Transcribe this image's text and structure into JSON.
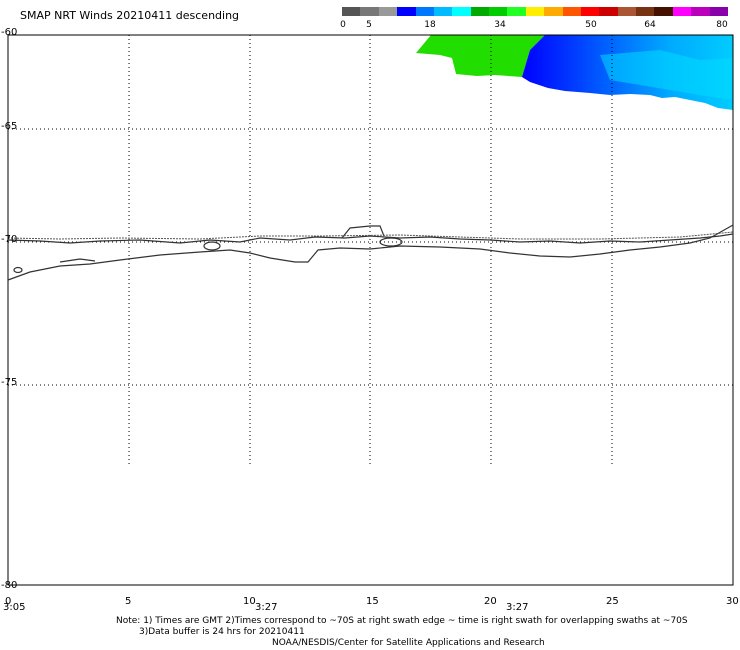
{
  "header": {
    "title": "SMAP NRT Winds  20210411 descending"
  },
  "colorbar": {
    "colors": [
      "#555555",
      "#777777",
      "#999999",
      "#0000ff",
      "#0077ff",
      "#00bbff",
      "#00ffff",
      "#00aa00",
      "#00cc00",
      "#22ff22",
      "#ffee00",
      "#ffaa00",
      "#ff5500",
      "#ff0000",
      "#cc0000",
      "#aa5533",
      "#773311",
      "#441100",
      "#ff00ff",
      "#bb00bb",
      "#8800aa"
    ],
    "labels": [
      "0",
      "5",
      "18",
      "34",
      "50",
      "64",
      "80"
    ]
  },
  "map": {
    "lat_labels": [
      "-60",
      "-65",
      "-70",
      "-75",
      "-80"
    ],
    "lon_labels": [
      "0",
      "5",
      "10",
      "15",
      "20",
      "25",
      "30"
    ],
    "time_labels": [
      "3:05",
      "3:27",
      "3:27"
    ]
  },
  "footer": {
    "note_line1": "Note: 1) Times are GMT 2)Times correspond to ~70S at right swath edge ~ time is right swath for overlapping swaths at ~70S",
    "note_line2": "3)Data buffer is 24 hrs for 20210411",
    "credit": "NOAA/NESDIS/Center for Satellite Applications and Research"
  }
}
